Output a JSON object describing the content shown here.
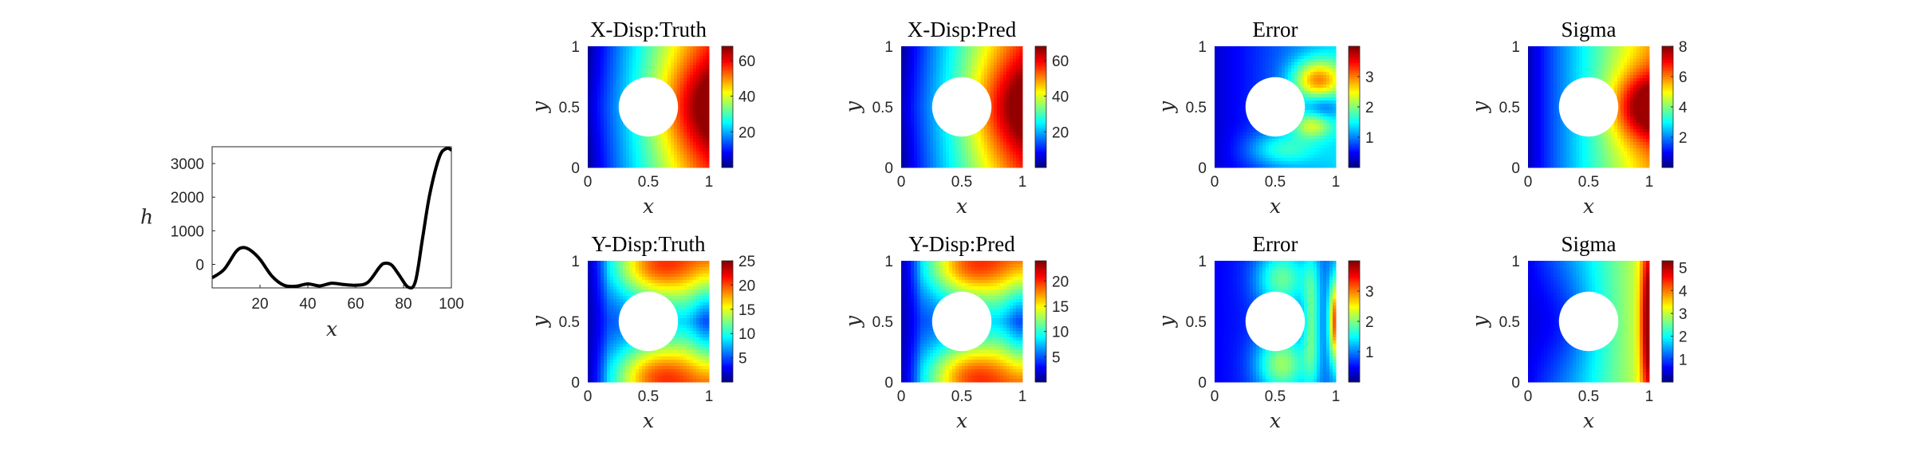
{
  "chart_data": [
    {
      "type": "line",
      "x": [
        0,
        5,
        10,
        13,
        16,
        20,
        25,
        30,
        35,
        40,
        45,
        50,
        55,
        60,
        65,
        70,
        72,
        75,
        78,
        82,
        85,
        88,
        91,
        95,
        98,
        100
      ],
      "y": [
        -400,
        -150,
        380,
        500,
        420,
        150,
        -350,
        -620,
        -650,
        -580,
        -640,
        -560,
        -600,
        -620,
        -540,
        -80,
        30,
        -20,
        -300,
        -680,
        -500,
        800,
        2100,
        3200,
        3450,
        3400
      ],
      "xlabel": "x",
      "ylabel": "h",
      "xlim": [
        0,
        100
      ],
      "ylim": [
        -700,
        3500
      ],
      "xticks": [
        "20",
        "40",
        "60",
        "80",
        "100"
      ],
      "yticks": [
        "0",
        "1000",
        "2000",
        "3000"
      ],
      "line_color": "#000000"
    },
    {
      "type": "heatmap",
      "title": "X-Disp:Truth",
      "xlabel": "x",
      "ylabel": "y",
      "xticks": [
        "0",
        "0.5",
        "1"
      ],
      "yticks": [
        "0",
        "0.5",
        "1"
      ],
      "colorbar_ticks": [
        "20",
        "40",
        "60"
      ],
      "colorbar_range": [
        0,
        68
      ],
      "field": "xdisp"
    },
    {
      "type": "heatmap",
      "title": "X-Disp:Pred",
      "xlabel": "x",
      "ylabel": "y",
      "xticks": [
        "0",
        "0.5",
        "1"
      ],
      "yticks": [
        "0",
        "0.5",
        "1"
      ],
      "colorbar_ticks": [
        "20",
        "40",
        "60"
      ],
      "colorbar_range": [
        0,
        68
      ],
      "field": "xdisp"
    },
    {
      "type": "heatmap",
      "title": "Error",
      "xlabel": "x",
      "ylabel": "y",
      "xticks": [
        "0",
        "0.5",
        "1"
      ],
      "yticks": [
        "0",
        "0.5",
        "1"
      ],
      "colorbar_ticks": [
        "1",
        "2",
        "3"
      ],
      "colorbar_range": [
        0,
        4
      ],
      "field": "xerr"
    },
    {
      "type": "heatmap",
      "title": "Sigma",
      "xlabel": "x",
      "ylabel": "y",
      "xticks": [
        "0",
        "0.5",
        "1"
      ],
      "yticks": [
        "0",
        "0.5",
        "1"
      ],
      "colorbar_ticks": [
        "2",
        "4",
        "6",
        "8"
      ],
      "colorbar_range": [
        0,
        8
      ],
      "field": "xsig"
    },
    {
      "type": "heatmap",
      "title": "Y-Disp:Truth",
      "xlabel": "x",
      "ylabel": "y",
      "xticks": [
        "0",
        "0.5",
        "1"
      ],
      "yticks": [
        "0",
        "0.5",
        "1"
      ],
      "colorbar_ticks": [
        "5",
        "10",
        "15",
        "20",
        "25"
      ],
      "colorbar_range": [
        0,
        25
      ],
      "field": "ydisp"
    },
    {
      "type": "heatmap",
      "title": "Y-Disp:Pred",
      "xlabel": "x",
      "ylabel": "y",
      "xticks": [
        "0",
        "0.5",
        "1"
      ],
      "yticks": [
        "0",
        "0.5",
        "1"
      ],
      "colorbar_ticks": [
        "5",
        "10",
        "15",
        "20"
      ],
      "colorbar_range": [
        0,
        24
      ],
      "field": "ydisp"
    },
    {
      "type": "heatmap",
      "title": "Error",
      "xlabel": "x",
      "ylabel": "y",
      "xticks": [
        "0",
        "0.5",
        "1"
      ],
      "yticks": [
        "0",
        "0.5",
        "1"
      ],
      "colorbar_ticks": [
        "1",
        "2",
        "3"
      ],
      "colorbar_range": [
        0,
        4
      ],
      "field": "yerr"
    },
    {
      "type": "heatmap",
      "title": "Sigma",
      "xlabel": "x",
      "ylabel": "y",
      "xticks": [
        "0",
        "0.5",
        "1"
      ],
      "yticks": [
        "0",
        "0.5",
        "1"
      ],
      "colorbar_ticks": [
        "1",
        "2",
        "3",
        "4",
        "5"
      ],
      "colorbar_range": [
        0,
        5.3
      ],
      "field": "ysig"
    }
  ],
  "colormap": "jet"
}
